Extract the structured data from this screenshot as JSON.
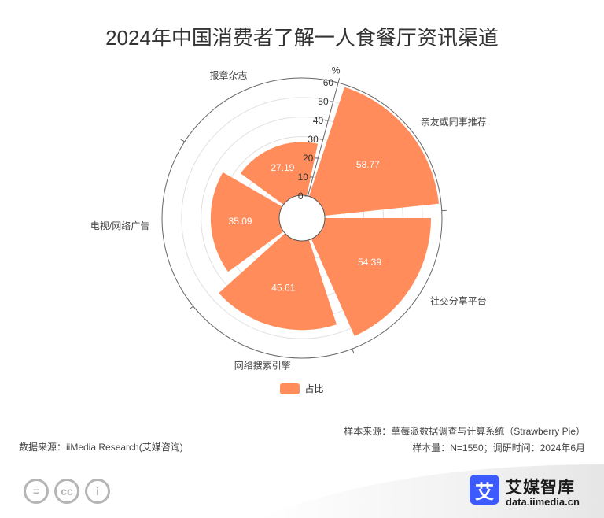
{
  "title": "2024年中国消费者了解一人食餐厅资讯渠道",
  "chart_data": {
    "type": "polar-bar",
    "title": "2024年中国消费者了解一人食餐厅资讯渠道",
    "categories": [
      "亲友或同事推荐",
      "社交分享平台",
      "网络搜索引擎",
      "电视/网络广告",
      "报章杂志"
    ],
    "series": [
      {
        "name": "占比",
        "values": [
          58.77,
          54.39,
          45.61,
          35.09,
          27.19
        ]
      }
    ],
    "radial_axis": {
      "unit": "%",
      "min": 0,
      "max": 60,
      "ticks": [
        0,
        10,
        20,
        30,
        40,
        50,
        60
      ]
    },
    "legend": "bottom-center",
    "bar_color": "#ff8c5a"
  },
  "legend": {
    "label": "占比"
  },
  "source_left": "数据来源：iiMedia Research(艾媒咨询)",
  "source_right": {
    "line1": "样本来源：草莓派数据调查与计算系统（Strawberry Pie）",
    "line2": "样本量：N=1550；调研时间：2024年6月"
  },
  "footer": {
    "cc_icons": [
      "equals-icon",
      "cc-icon",
      "person-icon"
    ],
    "cc_glyphs": [
      "=",
      "cc",
      "i"
    ],
    "brand_mark": "艾",
    "brand_name": "艾媒智库",
    "brand_url": "data.iimedia.cn",
    "brand_color": "#3d5afe"
  }
}
